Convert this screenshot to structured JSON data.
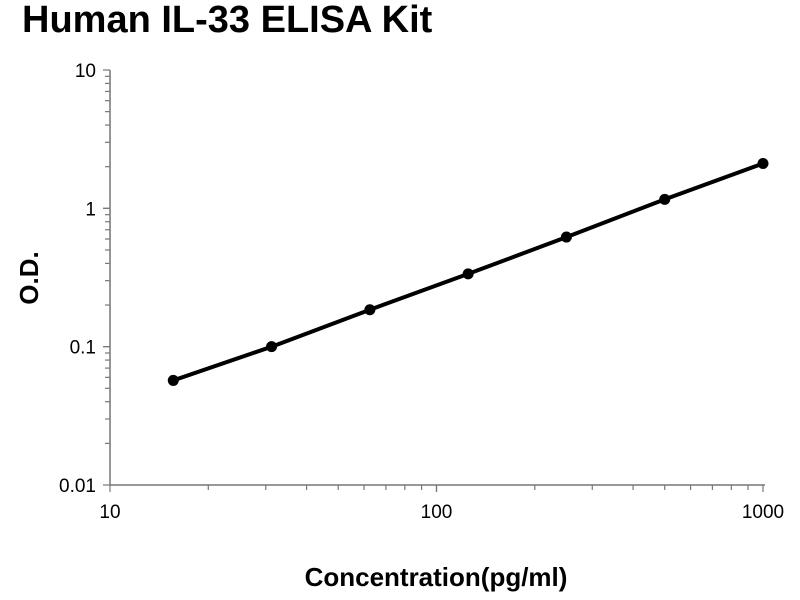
{
  "chart_data": {
    "type": "line",
    "title": "Human IL-33 ELISA Kit",
    "xlabel": "Concentration(pg/ml)",
    "ylabel": "O.D.",
    "x_scale": "log",
    "y_scale": "log",
    "xlim": [
      10,
      1000
    ],
    "ylim": [
      0.01,
      10
    ],
    "x_ticks": [
      "10",
      "100",
      "1000"
    ],
    "y_ticks": [
      "0.01",
      "0.1",
      "1",
      "10"
    ],
    "grid": false,
    "legend": "none",
    "color": "#000000",
    "series": [
      {
        "x": [
          15.625,
          31.25,
          62.5,
          125,
          250,
          500,
          1000
        ],
        "y": [
          0.057,
          0.1,
          0.185,
          0.336,
          0.62,
          1.16,
          2.11
        ]
      }
    ]
  }
}
